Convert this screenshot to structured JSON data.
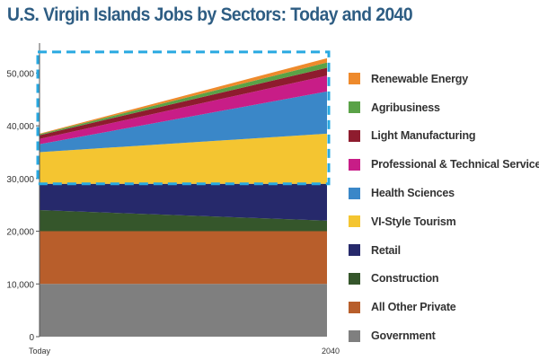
{
  "chart_data": {
    "type": "area",
    "stacked": true,
    "title": "U.S. Virgin Islands Jobs by Sectors: Today and 2040",
    "categories": [
      "Today",
      "2040"
    ],
    "ylim": [
      0,
      55000
    ],
    "yticks": [
      0,
      10000,
      20000,
      30000,
      40000,
      50000
    ],
    "ytick_labels": [
      "0",
      "10,000",
      "20,000",
      "30,000",
      "40,000",
      "50,000"
    ],
    "grid": false,
    "legend_position": "right",
    "highlight_range": [
      29000,
      54000
    ],
    "highlight_color": "#29a9e1",
    "series": [
      {
        "name": "Government",
        "color": "#7f7f7f",
        "values": [
          10000,
          10000
        ]
      },
      {
        "name": "All Other Private",
        "color": "#b85e2b",
        "values": [
          10000,
          10000
        ]
      },
      {
        "name": "Construction",
        "color": "#35562b",
        "values": [
          4000,
          2000
        ]
      },
      {
        "name": "Retail",
        "color": "#26296b",
        "values": [
          5000,
          7000
        ]
      },
      {
        "name": "VI-Style Tourism",
        "color": "#f4c531",
        "values": [
          6000,
          9500
        ]
      },
      {
        "name": "Health Sciences",
        "color": "#3a87c8",
        "values": [
          1500,
          8000
        ]
      },
      {
        "name": "Professional & Technical Services",
        "color": "#c81d87",
        "values": [
          1000,
          3000
        ]
      },
      {
        "name": "Light Manufacturing",
        "color": "#8e1c2e",
        "values": [
          700,
          1500
        ]
      },
      {
        "name": "Agribusiness",
        "color": "#5aa247",
        "values": [
          200,
          1000
        ]
      },
      {
        "name": "Renewable Energy",
        "color": "#ee8a2c",
        "values": [
          100,
          800
        ]
      }
    ]
  }
}
